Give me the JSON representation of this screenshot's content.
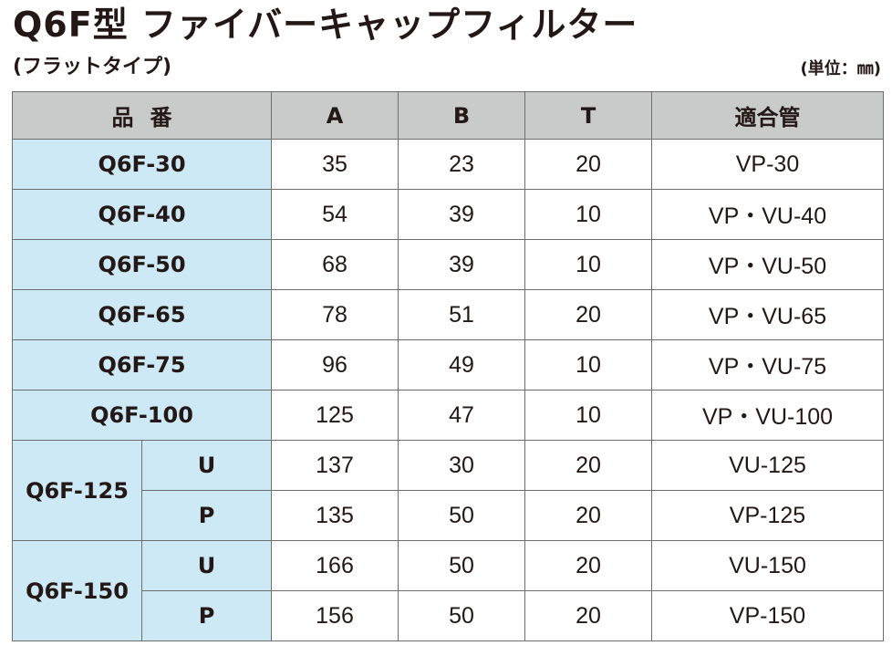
{
  "title": "Q6F型 ファイバーキャップフィルター",
  "subtitle": "(フラットタイプ)",
  "unit": "(単位：㎜)",
  "table": {
    "headers": {
      "part_no": "品番",
      "a": "A",
      "b": "B",
      "t": "T",
      "pipe": "適合管"
    },
    "rows": [
      {
        "model": "Q6F-30",
        "a": "35",
        "b": "23",
        "t": "20",
        "pipe": "VP-30"
      },
      {
        "model": "Q6F-40",
        "a": "54",
        "b": "39",
        "t": "10",
        "pipe": "VP・VU-40"
      },
      {
        "model": "Q6F-50",
        "a": "68",
        "b": "39",
        "t": "10",
        "pipe": "VP・VU-50"
      },
      {
        "model": "Q6F-65",
        "a": "78",
        "b": "51",
        "t": "20",
        "pipe": "VP・VU-65"
      },
      {
        "model": "Q6F-75",
        "a": "96",
        "b": "49",
        "t": "10",
        "pipe": "VP・VU-75"
      },
      {
        "model": "Q6F-100",
        "a": "125",
        "b": "47",
        "t": "10",
        "pipe": "VP・VU-100"
      }
    ],
    "groups": [
      {
        "model": "Q6F-125",
        "variants": [
          {
            "type": "U",
            "a": "137",
            "b": "30",
            "t": "20",
            "pipe": "VU-125"
          },
          {
            "type": "P",
            "a": "135",
            "b": "50",
            "t": "20",
            "pipe": "VP-125"
          }
        ]
      },
      {
        "model": "Q6F-150",
        "variants": [
          {
            "type": "U",
            "a": "166",
            "b": "50",
            "t": "20",
            "pipe": "VU-150"
          },
          {
            "type": "P",
            "a": "156",
            "b": "50",
            "t": "20",
            "pipe": "VP-150"
          }
        ]
      }
    ]
  },
  "colors": {
    "header_bg": "#c9caca",
    "model_bg": "#cde9f6",
    "border": "#6d6d6d",
    "text": "#231815"
  }
}
